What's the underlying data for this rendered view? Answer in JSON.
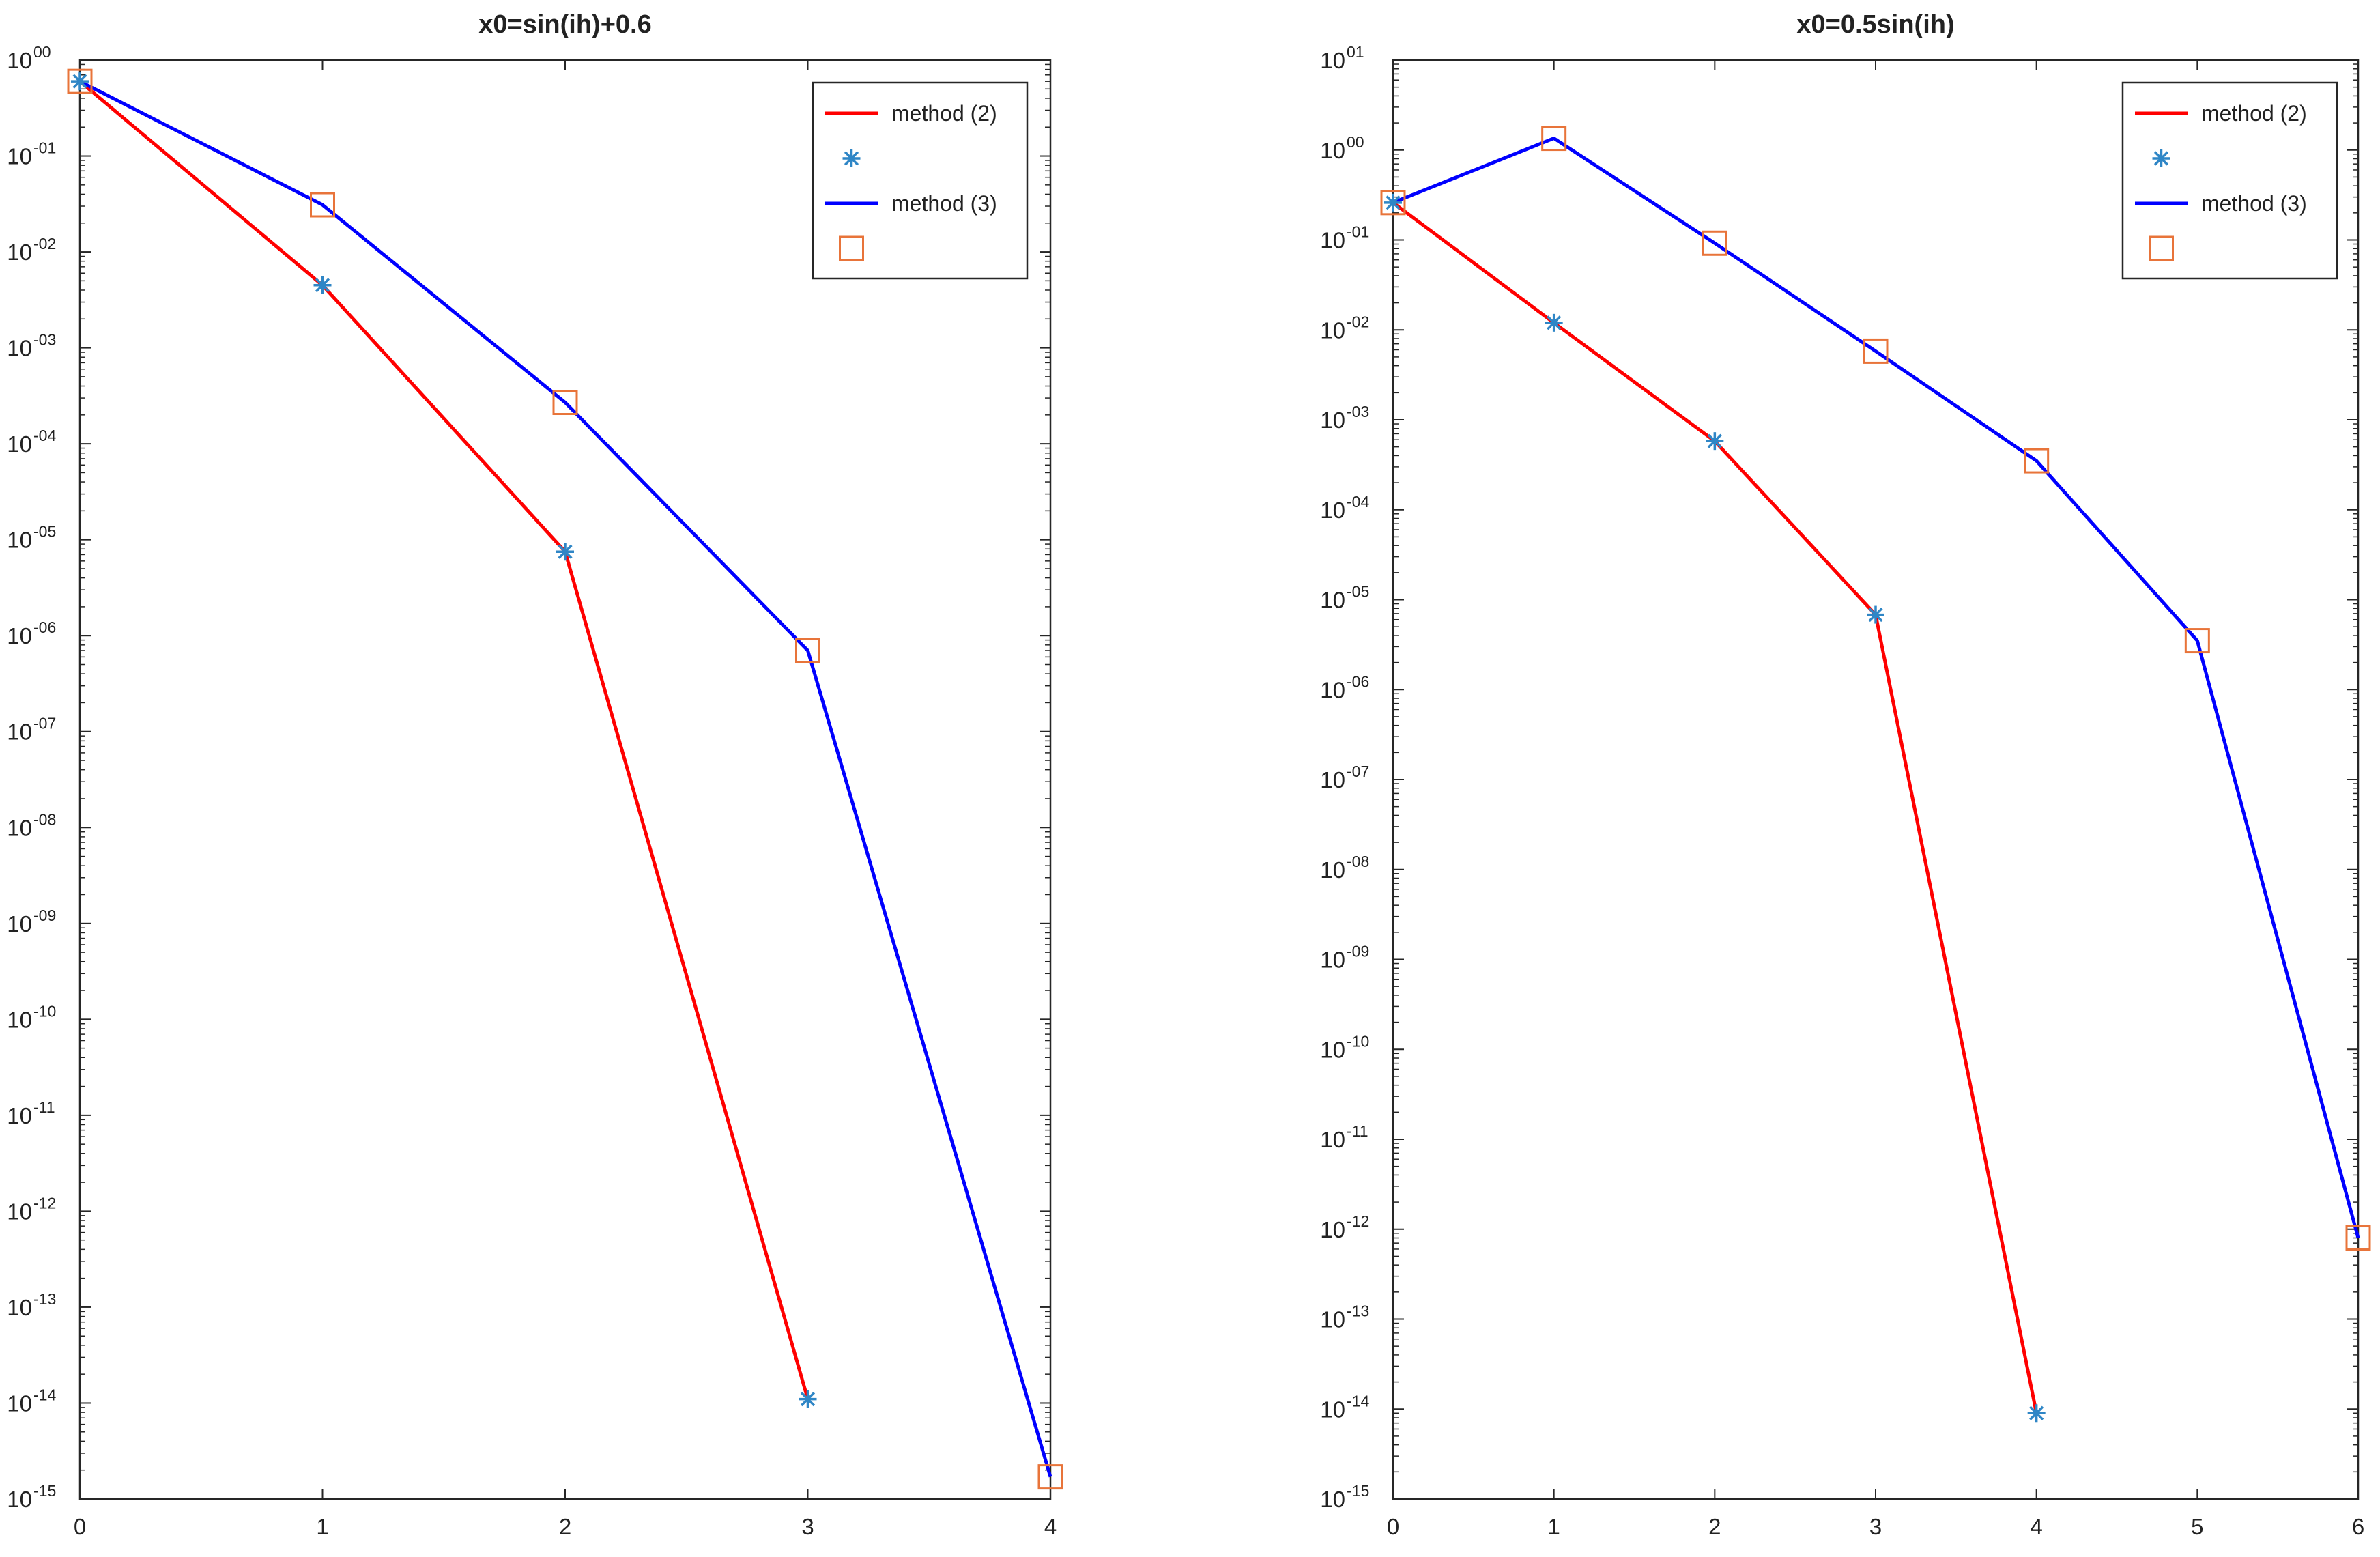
{
  "chart_data": [
    {
      "type": "line",
      "title": "x0=sin(ih)+0.6",
      "xlabel": "",
      "ylabel": "",
      "yscale": "log",
      "xlim": [
        0,
        4
      ],
      "ylim_exp": [
        -15,
        0
      ],
      "xticks": [
        "0",
        "1",
        "2",
        "3",
        "4"
      ],
      "ytick_labels": [
        "10",
        "10",
        "10",
        "10",
        "10",
        "10",
        "10",
        "10",
        "10",
        "10",
        "10",
        "10",
        "10",
        "10",
        "10",
        "10"
      ],
      "ytick_exps": [
        "00",
        "-01",
        "-02",
        "-03",
        "-04",
        "-05",
        "-06",
        "-07",
        "-08",
        "-09",
        "-10",
        "-11",
        "-12",
        "-13",
        "-14",
        "-15"
      ],
      "legend_position": "top-right",
      "series": [
        {
          "name": "method (2)",
          "color": "#ff0000",
          "marker": "asterisk",
          "marker_color": "#2f86c6",
          "x": [
            0,
            1,
            2,
            3
          ],
          "y": [
            0.6,
            0.0045,
            7.5e-06,
            1.1e-14
          ]
        },
        {
          "name": "method (3)",
          "color": "#0000ff",
          "marker": "square",
          "marker_color": "#e8743a",
          "x": [
            0,
            1,
            2,
            3,
            4
          ],
          "y": [
            0.6,
            0.031,
            0.00027,
            7e-07,
            1.7e-15
          ]
        }
      ],
      "legend": [
        {
          "label": "method (2)",
          "kind": "line",
          "color": "#ff0000"
        },
        {
          "label": "",
          "kind": "asterisk",
          "color": "#2f86c6"
        },
        {
          "label": "method (3)",
          "kind": "line",
          "color": "#0000ff"
        },
        {
          "label": "",
          "kind": "square",
          "color": "#e8743a"
        }
      ]
    },
    {
      "type": "line",
      "title": "x0=0.5sin(ih)",
      "xlabel": "",
      "ylabel": "",
      "yscale": "log",
      "xlim": [
        0,
        6
      ],
      "ylim_exp": [
        -15,
        1
      ],
      "xticks": [
        "0",
        "1",
        "2",
        "3",
        "4",
        "5",
        "6"
      ],
      "ytick_labels": [
        "10",
        "10",
        "10",
        "10",
        "10",
        "10",
        "10",
        "10",
        "10",
        "10",
        "10",
        "10",
        "10",
        "10",
        "10",
        "10",
        "10"
      ],
      "ytick_exps": [
        "01",
        "00",
        "-01",
        "-02",
        "-03",
        "-04",
        "-05",
        "-06",
        "-07",
        "-08",
        "-09",
        "-10",
        "-11",
        "-12",
        "-13",
        "-14",
        "-15"
      ],
      "legend_position": "top-right",
      "series": [
        {
          "name": "method (2)",
          "color": "#ff0000",
          "marker": "asterisk",
          "marker_color": "#2f86c6",
          "x": [
            0,
            1,
            2,
            3,
            4
          ],
          "y": [
            0.26,
            0.012,
            0.00058,
            6.8e-06,
            9e-15
          ]
        },
        {
          "name": "method (3)",
          "color": "#0000ff",
          "marker": "square",
          "marker_color": "#e8743a",
          "x": [
            0,
            1,
            2,
            3,
            4,
            5,
            6
          ],
          "y": [
            0.26,
            1.35,
            0.092,
            0.0058,
            0.00035,
            3.5e-06,
            8e-13
          ]
        }
      ],
      "legend": [
        {
          "label": "method (2)",
          "kind": "line",
          "color": "#ff0000"
        },
        {
          "label": "",
          "kind": "asterisk",
          "color": "#2f86c6"
        },
        {
          "label": "method (3)",
          "kind": "line",
          "color": "#0000ff"
        },
        {
          "label": "",
          "kind": "square",
          "color": "#e8743a"
        }
      ]
    }
  ]
}
